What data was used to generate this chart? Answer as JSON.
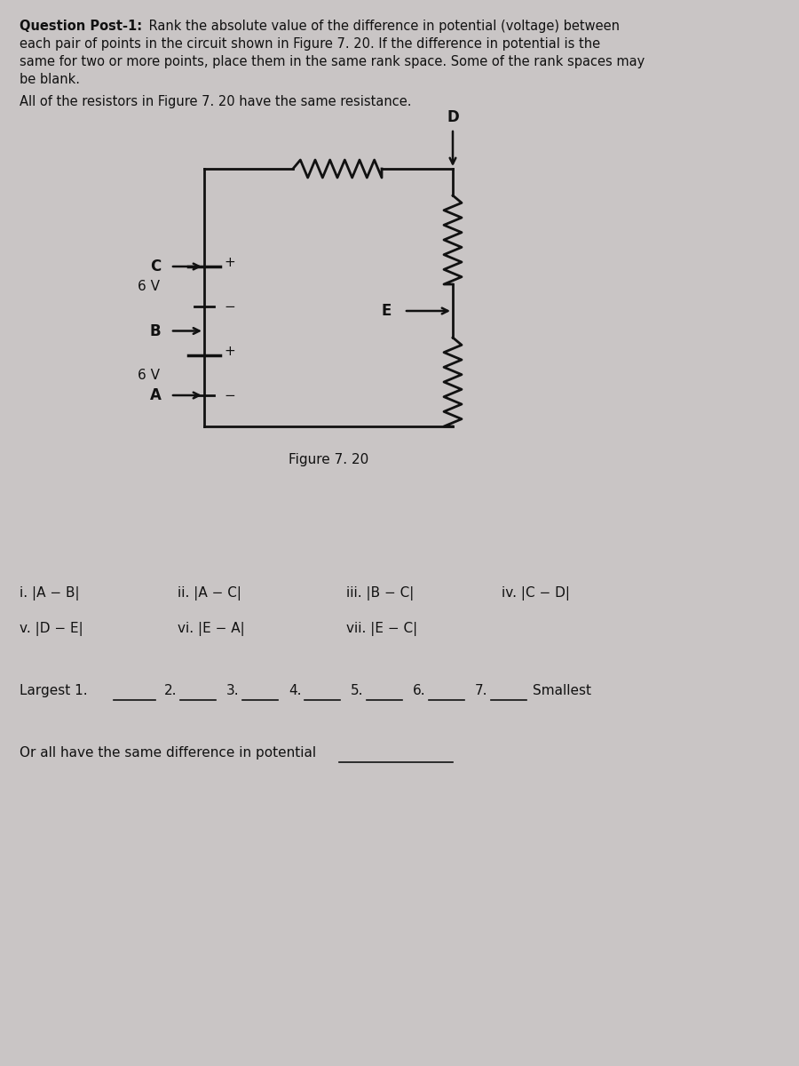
{
  "title_bold": "Question Post-1:",
  "title_rest": " Rank the absolute value of the difference in potential (voltage) between each pair of points in the circuit shown in Figure 7. 20. If the difference in potential is the same for two or more points, place them in the same rank space. Some of the rank spaces may be blank.",
  "subtitle": "All of the resistors in Figure 7. 20 have the same resistance.",
  "figure_caption": "Figure 7. 20",
  "items_row1_i": "i. |A − B|",
  "items_row1_ii": "ii. |A − C|",
  "items_row1_iii": "iii. |B − C|",
  "items_row1_iv": "iv. |C − D|",
  "items_row2_v": "v. |D − E|",
  "items_row2_vi": "vi. |E − A|",
  "items_row2_vii": "vii. |E − C|",
  "rank_label_largest": "Largest 1.",
  "rank_numbers": [
    "2.",
    "3.",
    "4.",
    "5.",
    "6.",
    "7."
  ],
  "rank_label_smallest": "Smallest",
  "or_same": "Or all have the same difference in potential",
  "bg_color": "#c9c5c5",
  "text_color": "#111111",
  "line_color": "#111111",
  "battery_color": "#111111"
}
